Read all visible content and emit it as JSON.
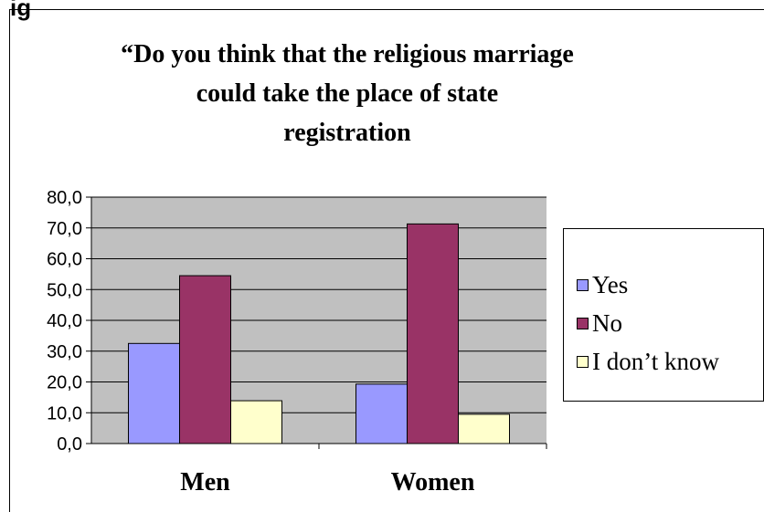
{
  "corner_text": "ig",
  "chart_data": {
    "type": "bar",
    "title_lines": [
      "“Do you think that the religious marriage",
      "could take the place of state",
      "registration"
    ],
    "categories": [
      "Men",
      "Women"
    ],
    "series": [
      {
        "name": "Yes",
        "values": [
          32.5,
          19.3
        ],
        "color": "#9999ff"
      },
      {
        "name": "No",
        "values": [
          54.5,
          71.3
        ],
        "color": "#993366"
      },
      {
        "name": "I don’t know",
        "values": [
          13.9,
          9.5
        ],
        "color": "#ffffcc"
      }
    ],
    "ylim": [
      0,
      80
    ],
    "yticks": [
      "0,0",
      "10,0",
      "20,0",
      "30,0",
      "40,0",
      "50,0",
      "60,0",
      "70,0",
      "80,0"
    ],
    "grid": true,
    "plot_background": "#c0c0c0",
    "legend_position": "right"
  }
}
